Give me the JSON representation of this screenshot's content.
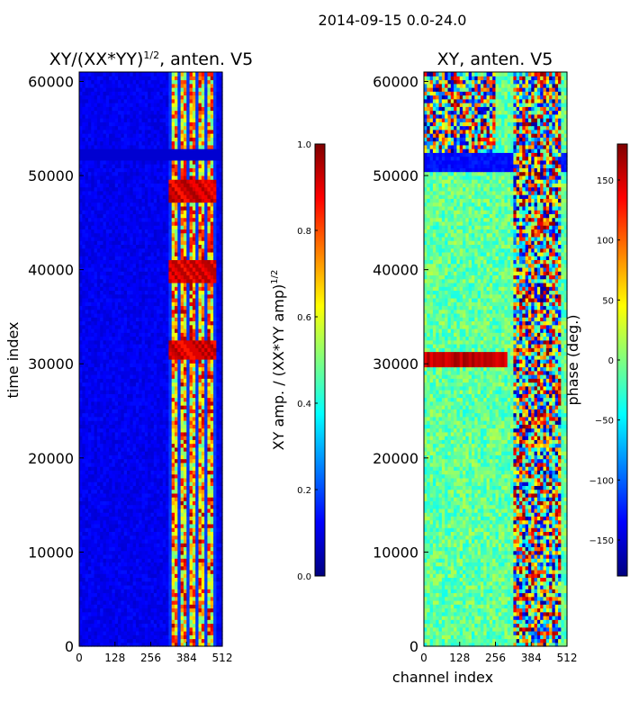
{
  "suptitle": "2014-09-15 0.0-24.0",
  "panels": [
    {
      "title": "XY/(XX*YY)",
      "title_sup": "1/2",
      "title_tail": ", anten. V5"
    },
    {
      "title": "XY, anten. V5"
    }
  ],
  "colors": {
    "colormap": [
      "#00007f",
      "#0000ff",
      "#007fff",
      "#00ffff",
      "#7fff7f",
      "#ffff00",
      "#ff7f00",
      "#ff0000",
      "#7f0000"
    ]
  },
  "chart_data": [
    {
      "type": "heatmap",
      "title": "XY/(XX*YY)^1/2, anten. V5",
      "xlabel": "",
      "ylabel": "time index",
      "xlim": [
        0,
        512
      ],
      "ylim": [
        0,
        61000
      ],
      "xticks": [
        0,
        128,
        256,
        384,
        512
      ],
      "yticks": [
        0,
        10000,
        20000,
        30000,
        40000,
        50000,
        60000
      ],
      "xtick_labels": [
        "0",
        "128",
        "256",
        "384",
        "512"
      ],
      "ytick_labels": [
        "0",
        "10000",
        "20000",
        "30000",
        "40000",
        "50000",
        "60000"
      ],
      "colorbar": {
        "label": "XY amp. / (XX*YY amp)",
        "label_sup": "1/2",
        "range": [
          0.0,
          1.0
        ],
        "ticks": [
          0.0,
          0.2,
          0.4,
          0.6,
          0.8,
          1.0
        ],
        "tick_labels": [
          "0.0",
          "0.2",
          "0.4",
          "0.6",
          "0.8",
          "1.0"
        ]
      },
      "features": {
        "background_level": 0.08,
        "active_channel_range": [
          320,
          490
        ],
        "active_level_range": [
          0.3,
          0.95
        ],
        "bright_time_bands": [
          31500,
          40000,
          48500
        ]
      }
    },
    {
      "type": "heatmap",
      "title": "XY, anten. V5",
      "xlabel": "channel index",
      "ylabel": "",
      "xlim": [
        0,
        512
      ],
      "ylim": [
        0,
        61000
      ],
      "xticks": [
        0,
        128,
        256,
        384,
        512
      ],
      "yticks": [
        0,
        10000,
        20000,
        30000,
        40000,
        50000,
        60000
      ],
      "xtick_labels": [
        "0",
        "128",
        "256",
        "384",
        "512"
      ],
      "ytick_labels": [
        "0",
        "10000",
        "20000",
        "30000",
        "40000",
        "50000",
        "60000"
      ],
      "colorbar": {
        "label": "phase (deg.)",
        "range": [
          -180,
          180
        ],
        "ticks": [
          -150,
          -100,
          -50,
          0,
          50,
          100,
          150
        ],
        "tick_labels": [
          "−150",
          "−100",
          "−50",
          "0",
          "50",
          "100",
          "150"
        ]
      },
      "features": {
        "background_phase": -10,
        "phase_wrap_region": [
          52500,
          61000
        ],
        "strong_band_time": 30500,
        "active_channel_range": [
          320,
          490
        ]
      }
    }
  ]
}
